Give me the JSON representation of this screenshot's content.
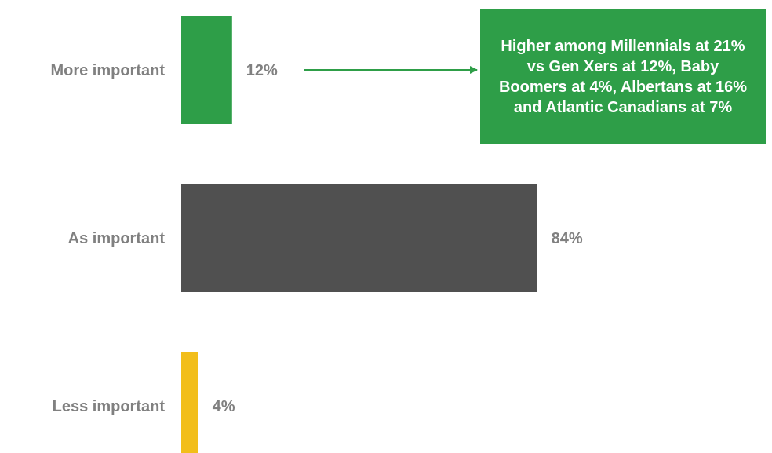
{
  "chart_data": {
    "type": "bar",
    "orientation": "horizontal",
    "categories": [
      "More important",
      "As important",
      "Less important"
    ],
    "values": [
      12,
      84,
      4
    ],
    "value_labels": [
      "12%",
      "84%",
      "4%"
    ],
    "colors": [
      "#2E9E48",
      "#505050",
      "#F2BE1A"
    ],
    "xlim": [
      0,
      100
    ],
    "grid": false,
    "annotation": {
      "text": "Higher among Millennials at 21% vs Gen Xers at 12%, Baby Boomers at 4%, Albertans at 16% and Atlantic Canadians at 7%",
      "target_category": "More important",
      "background": "#2E9E48",
      "text_color": "#FFFFFF"
    }
  }
}
